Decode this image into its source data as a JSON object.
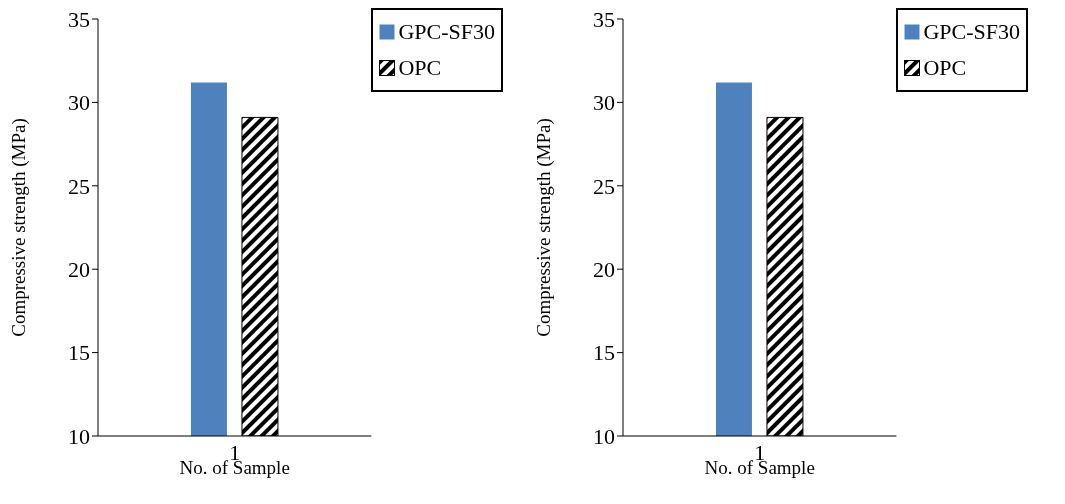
{
  "chart_data": [
    {
      "type": "bar",
      "xlabel": "No. of Sample",
      "ylabel": "Compressive strength (MPa)",
      "categories": [
        "1"
      ],
      "series": [
        {
          "name": "GPC-SF30",
          "color": "#4f81bd",
          "values": [
            31.2
          ]
        },
        {
          "name": "OPC",
          "color": "#000000",
          "values": [
            29.1
          ]
        }
      ],
      "ylim": [
        10,
        35
      ],
      "yticks": [
        10,
        15,
        20,
        25,
        30,
        35
      ],
      "grid": false,
      "legend": "top right"
    },
    {
      "type": "bar",
      "xlabel": "No. of Sample",
      "ylabel": "Compressive strength (MPa)",
      "categories": [
        "1"
      ],
      "series": [
        {
          "name": "GPC-SF30",
          "color": "#4f81bd",
          "values": [
            31.2
          ]
        },
        {
          "name": "OPC",
          "color": "#000000",
          "values": [
            29.1
          ]
        }
      ],
      "ylim": [
        10,
        35
      ],
      "yticks": [
        10,
        15,
        20,
        25,
        30,
        35
      ],
      "grid": false,
      "legend": "top right"
    }
  ]
}
